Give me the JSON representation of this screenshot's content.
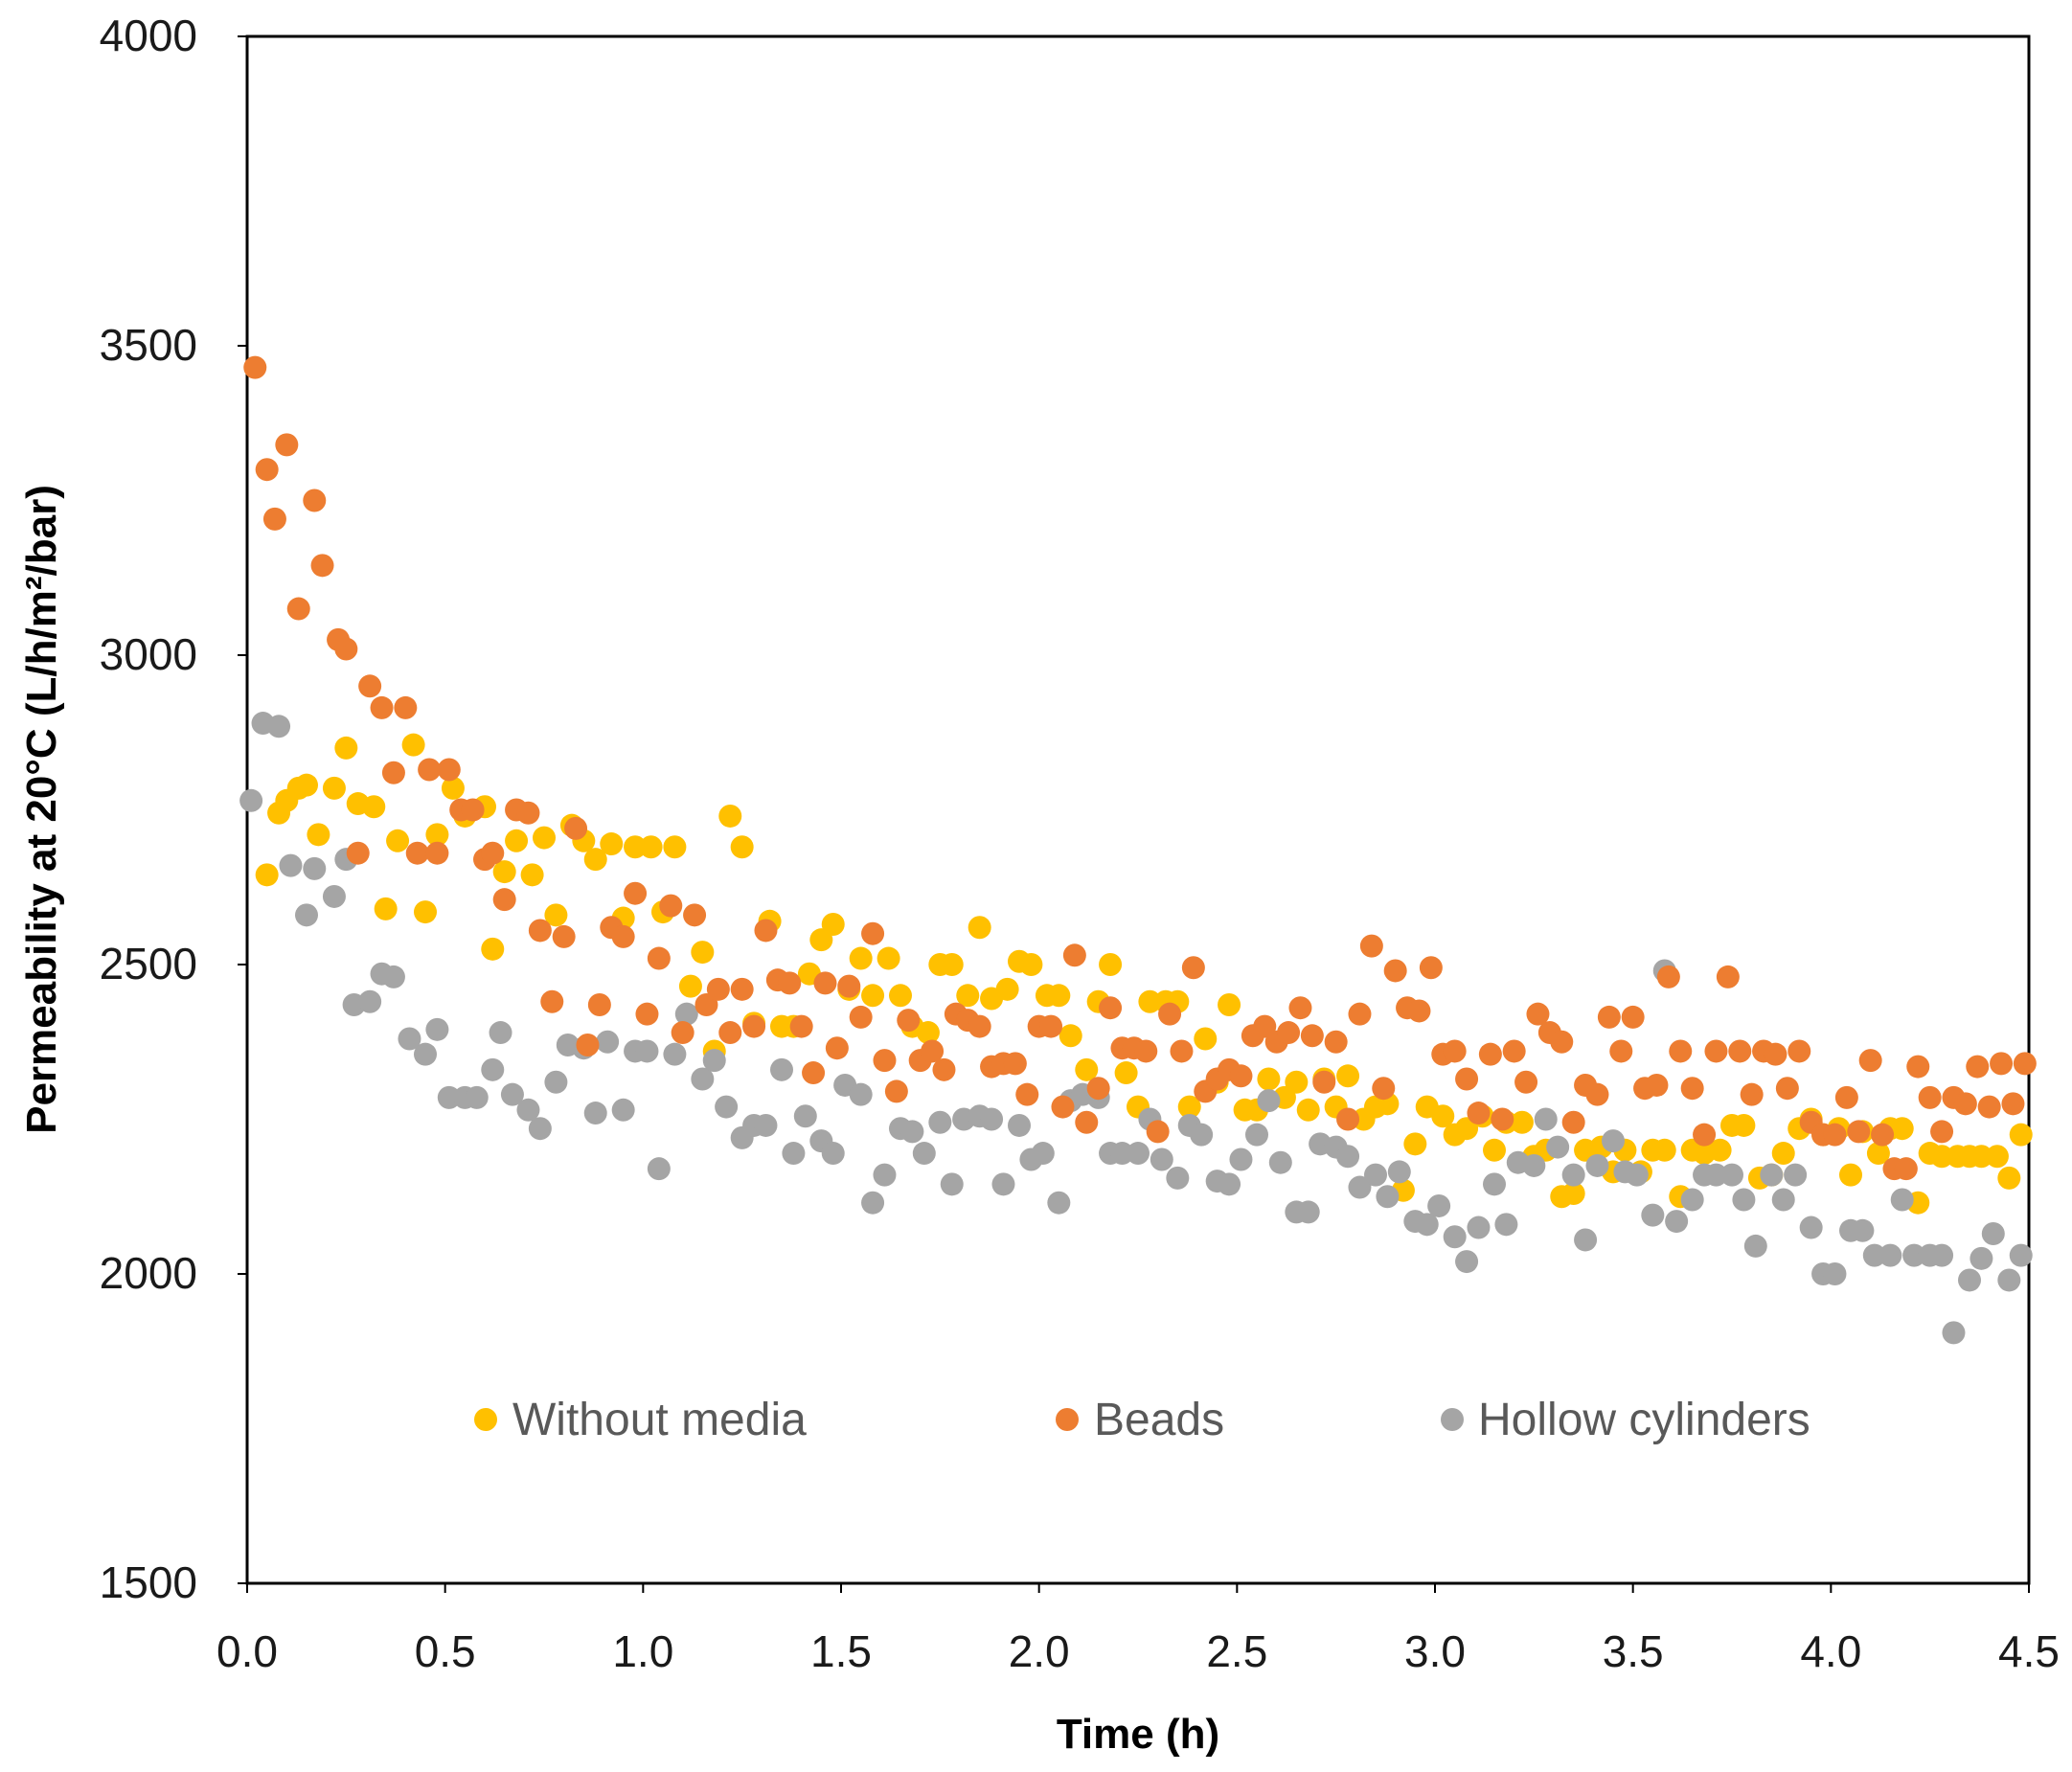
{
  "chart_data": {
    "type": "scatter",
    "title": "",
    "xlabel": "Time (h)",
    "ylabel": "Permeability at 20°C (L/h/m²/bar)",
    "xlim": [
      0.0,
      4.5
    ],
    "ylim": [
      1500,
      4000
    ],
    "xticks": [
      "0.0",
      "0.5",
      "1.0",
      "1.5",
      "2.0",
      "2.5",
      "3.0",
      "3.5",
      "4.0",
      "4.5"
    ],
    "yticks": [
      "1500",
      "2000",
      "2500",
      "3000",
      "3500",
      "4000"
    ],
    "grid": false,
    "legend_position": "inside-bottom",
    "series": [
      {
        "name": "Without media",
        "color": "#FFC000",
        "x": [
          0.05,
          0.08,
          0.1,
          0.13,
          0.15,
          0.18,
          0.22,
          0.25,
          0.28,
          0.32,
          0.35,
          0.38,
          0.42,
          0.45,
          0.48,
          0.52,
          0.55,
          0.6,
          0.62,
          0.65,
          0.68,
          0.72,
          0.75,
          0.78,
          0.82,
          0.85,
          0.88,
          0.92,
          0.95,
          0.98,
          1.02,
          1.05,
          1.08,
          1.12,
          1.15,
          1.18,
          1.22,
          1.25,
          1.28,
          1.32,
          1.35,
          1.38,
          1.42,
          1.45,
          1.48,
          1.52,
          1.55,
          1.58,
          1.62,
          1.65,
          1.68,
          1.72,
          1.75,
          1.78,
          1.82,
          1.85,
          1.88,
          1.92,
          1.95,
          1.98,
          2.02,
          2.05,
          2.08,
          2.12,
          2.15,
          2.18,
          2.22,
          2.25,
          2.28,
          2.32,
          2.35,
          2.38,
          2.42,
          2.45,
          2.48,
          2.52,
          2.55,
          2.58,
          2.62,
          2.65,
          2.68,
          2.72,
          2.75,
          2.78,
          2.82,
          2.85,
          2.88,
          2.92,
          2.95,
          2.98,
          3.02,
          3.05,
          3.08,
          3.12,
          3.15,
          3.18,
          3.22,
          3.25,
          3.28,
          3.32,
          3.35,
          3.38,
          3.42,
          3.45,
          3.48,
          3.52,
          3.55,
          3.58,
          3.62,
          3.65,
          3.68,
          3.72,
          3.75,
          3.78,
          3.82,
          3.85,
          3.88,
          3.92,
          3.95,
          3.98,
          4.02,
          4.05,
          4.08,
          4.12,
          4.15,
          4.18,
          4.22,
          4.25,
          4.28,
          4.32,
          4.35,
          4.38,
          4.42,
          4.45,
          4.48
        ],
        "y": [
          2645,
          2745,
          2765,
          2785,
          2790,
          2710,
          2785,
          2850,
          2760,
          2755,
          2590,
          2700,
          2855,
          2585,
          2710,
          2785,
          2740,
          2755,
          2525,
          2650,
          2700,
          2645,
          2705,
          2580,
          2725,
          2700,
          2670,
          2695,
          2575,
          2690,
          2690,
          2585,
          2690,
          2465,
          2520,
          2360,
          2740,
          2690,
          2405,
          2570,
          2400,
          2400,
          2485,
          2540,
          2565,
          2460,
          2510,
          2450,
          2510,
          2450,
          2400,
          2390,
          2500,
          2500,
          2450,
          2560,
          2445,
          2460,
          2505,
          2500,
          2450,
          2450,
          2385,
          2330,
          2440,
          2500,
          2325,
          2270,
          2440,
          2440,
          2440,
          2270,
          2380,
          2310,
          2435,
          2265,
          2265,
          2315,
          2285,
          2310,
          2265,
          2315,
          2270,
          2320,
          2250,
          2270,
          2275,
          2135,
          2210,
          2270,
          2255,
          2225,
          2235,
          2255,
          2200,
          2245,
          2245,
          2190,
          2200,
          2125,
          2130,
          2200,
          2205,
          2165,
          2200,
          2165,
          2200,
          2200,
          2125,
          2200,
          2195,
          2200,
          2240,
          2240,
          2155,
          2160,
          2195,
          2235,
          2250,
          2225,
          2235,
          2160,
          2230,
          2195,
          2235,
          2235,
          2115,
          2195,
          2190,
          2190,
          2190,
          2190,
          2190,
          2155,
          2225
        ]
      },
      {
        "name": "Beads",
        "color": "#ED7D31",
        "x": [
          0.02,
          0.05,
          0.07,
          0.1,
          0.13,
          0.17,
          0.19,
          0.23,
          0.25,
          0.28,
          0.31,
          0.34,
          0.37,
          0.4,
          0.43,
          0.46,
          0.48,
          0.51,
          0.54,
          0.57,
          0.6,
          0.62,
          0.65,
          0.68,
          0.71,
          0.74,
          0.77,
          0.8,
          0.83,
          0.86,
          0.89,
          0.92,
          0.95,
          0.98,
          1.01,
          1.04,
          1.07,
          1.1,
          1.13,
          1.16,
          1.19,
          1.22,
          1.25,
          1.28,
          1.31,
          1.34,
          1.37,
          1.4,
          1.43,
          1.46,
          1.49,
          1.52,
          1.55,
          1.58,
          1.61,
          1.64,
          1.67,
          1.7,
          1.73,
          1.76,
          1.79,
          1.82,
          1.85,
          1.88,
          1.91,
          1.94,
          1.97,
          2.0,
          2.03,
          2.06,
          2.09,
          2.12,
          2.15,
          2.18,
          2.21,
          2.24,
          2.27,
          2.3,
          2.33,
          2.36,
          2.39,
          2.42,
          2.45,
          2.48,
          2.51,
          2.54,
          2.57,
          2.6,
          2.63,
          2.66,
          2.69,
          2.72,
          2.75,
          2.78,
          2.81,
          2.84,
          2.87,
          2.9,
          2.93,
          2.96,
          2.99,
          3.02,
          3.05,
          3.08,
          3.11,
          3.14,
          3.17,
          3.2,
          3.23,
          3.26,
          3.29,
          3.32,
          3.35,
          3.38,
          3.41,
          3.44,
          3.47,
          3.5,
          3.53,
          3.56,
          3.59,
          3.62,
          3.65,
          3.68,
          3.71,
          3.74,
          3.77,
          3.8,
          3.83,
          3.86,
          3.89,
          3.92,
          3.95,
          3.98,
          4.01,
          4.04,
          4.07,
          4.1,
          4.13,
          4.16,
          4.19,
          4.22,
          4.25,
          4.28,
          4.31,
          4.34,
          4.37,
          4.4,
          4.43,
          4.46,
          4.49
        ],
        "y": [
          3465,
          3300,
          3220,
          3340,
          3075,
          3250,
          3145,
          3025,
          3010,
          2680,
          2950,
          2915,
          2810,
          2915,
          2680,
          2815,
          2680,
          2815,
          2750,
          2750,
          2670,
          2680,
          2605,
          2750,
          2745,
          2555,
          2440,
          2545,
          2720,
          2370,
          2435,
          2560,
          2545,
          2615,
          2420,
          2510,
          2595,
          2390,
          2580,
          2435,
          2460,
          2390,
          2460,
          2400,
          2555,
          2475,
          2470,
          2400,
          2325,
          2470,
          2365,
          2465,
          2415,
          2550,
          2345,
          2295,
          2410,
          2345,
          2360,
          2330,
          2420,
          2410,
          2400,
          2335,
          2340,
          2340,
          2290,
          2400,
          2400,
          2270,
          2515,
          2245,
          2300,
          2430,
          2365,
          2365,
          2360,
          2230,
          2420,
          2360,
          2495,
          2295,
          2315,
          2330,
          2320,
          2385,
          2400,
          2375,
          2390,
          2430,
          2385,
          2310,
          2375,
          2250,
          2420,
          2530,
          2300,
          2490,
          2430,
          2425,
          2495,
          2355,
          2360,
          2315,
          2260,
          2355,
          2250,
          2360,
          2310,
          2420,
          2390,
          2375,
          2245,
          2305,
          2290,
          2415,
          2360,
          2415,
          2300,
          2305,
          2480,
          2360,
          2300,
          2225,
          2360,
          2480,
          2360,
          2290,
          2360,
          2355,
          2300,
          2360,
          2245,
          2225,
          2225,
          2285,
          2230,
          2345,
          2225,
          2170,
          2170,
          2335,
          2285,
          2230,
          2285,
          2275,
          2335,
          2270,
          2340,
          2275,
          2340
        ]
      },
      {
        "name": "Hollow cylinders",
        "color": "#A5A5A5",
        "x": [
          0.01,
          0.04,
          0.08,
          0.11,
          0.15,
          0.17,
          0.22,
          0.25,
          0.27,
          0.31,
          0.34,
          0.37,
          0.41,
          0.45,
          0.48,
          0.51,
          0.55,
          0.58,
          0.62,
          0.64,
          0.67,
          0.71,
          0.74,
          0.78,
          0.81,
          0.85,
          0.88,
          0.91,
          0.95,
          0.98,
          1.01,
          1.04,
          1.08,
          1.11,
          1.15,
          1.18,
          1.21,
          1.25,
          1.28,
          1.31,
          1.35,
          1.38,
          1.41,
          1.45,
          1.48,
          1.51,
          1.55,
          1.58,
          1.61,
          1.65,
          1.68,
          1.71,
          1.75,
          1.78,
          1.81,
          1.85,
          1.88,
          1.91,
          1.95,
          1.98,
          2.01,
          2.05,
          2.08,
          2.11,
          2.15,
          2.18,
          2.21,
          2.25,
          2.28,
          2.31,
          2.35,
          2.38,
          2.41,
          2.45,
          2.48,
          2.51,
          2.55,
          2.58,
          2.61,
          2.65,
          2.68,
          2.71,
          2.75,
          2.78,
          2.81,
          2.85,
          2.88,
          2.91,
          2.95,
          2.98,
          3.01,
          3.05,
          3.08,
          3.11,
          3.15,
          3.18,
          3.21,
          3.25,
          3.28,
          3.31,
          3.35,
          3.38,
          3.41,
          3.45,
          3.48,
          3.51,
          3.55,
          3.58,
          3.61,
          3.65,
          3.68,
          3.71,
          3.75,
          3.78,
          3.81,
          3.85,
          3.88,
          3.91,
          3.95,
          3.98,
          4.01,
          4.05,
          4.08,
          4.11,
          4.15,
          4.18,
          4.21,
          4.25,
          4.28,
          4.31,
          4.35,
          4.38,
          4.41,
          4.45,
          4.48
        ],
        "y": [
          2765,
          2890,
          2885,
          2660,
          2580,
          2655,
          2610,
          2670,
          2435,
          2440,
          2485,
          2480,
          2380,
          2355,
          2395,
          2285,
          2285,
          2285,
          2330,
          2390,
          2290,
          2265,
          2235,
          2310,
          2370,
          2365,
          2260,
          2375,
          2265,
          2360,
          2360,
          2170,
          2355,
          2420,
          2315,
          2345,
          2270,
          2220,
          2240,
          2240,
          2330,
          2195,
          2255,
          2215,
          2195,
          2305,
          2290,
          2115,
          2160,
          2235,
          2230,
          2195,
          2245,
          2145,
          2250,
          2255,
          2250,
          2145,
          2240,
          2185,
          2195,
          2115,
          2280,
          2290,
          2285,
          2195,
          2195,
          2195,
          2250,
          2185,
          2155,
          2240,
          2225,
          2150,
          2145,
          2185,
          2225,
          2280,
          2180,
          2100,
          2100,
          2210,
          2205,
          2190,
          2140,
          2160,
          2125,
          2165,
          2085,
          2080,
          2110,
          2060,
          2020,
          2075,
          2145,
          2080,
          2180,
          2175,
          2250,
          2205,
          2160,
          2055,
          2175,
          2215,
          2165,
          2160,
          2095,
          2490,
          2085,
          2120,
          2160,
          2160,
          2160,
          2120,
          2045,
          2160,
          2120,
          2160,
          2075,
          2000,
          2000,
          2070,
          2070,
          2030,
          2030,
          2120,
          2030,
          2030,
          2030,
          1905,
          1990,
          2025,
          2065,
          1990,
          2030
        ]
      }
    ]
  }
}
